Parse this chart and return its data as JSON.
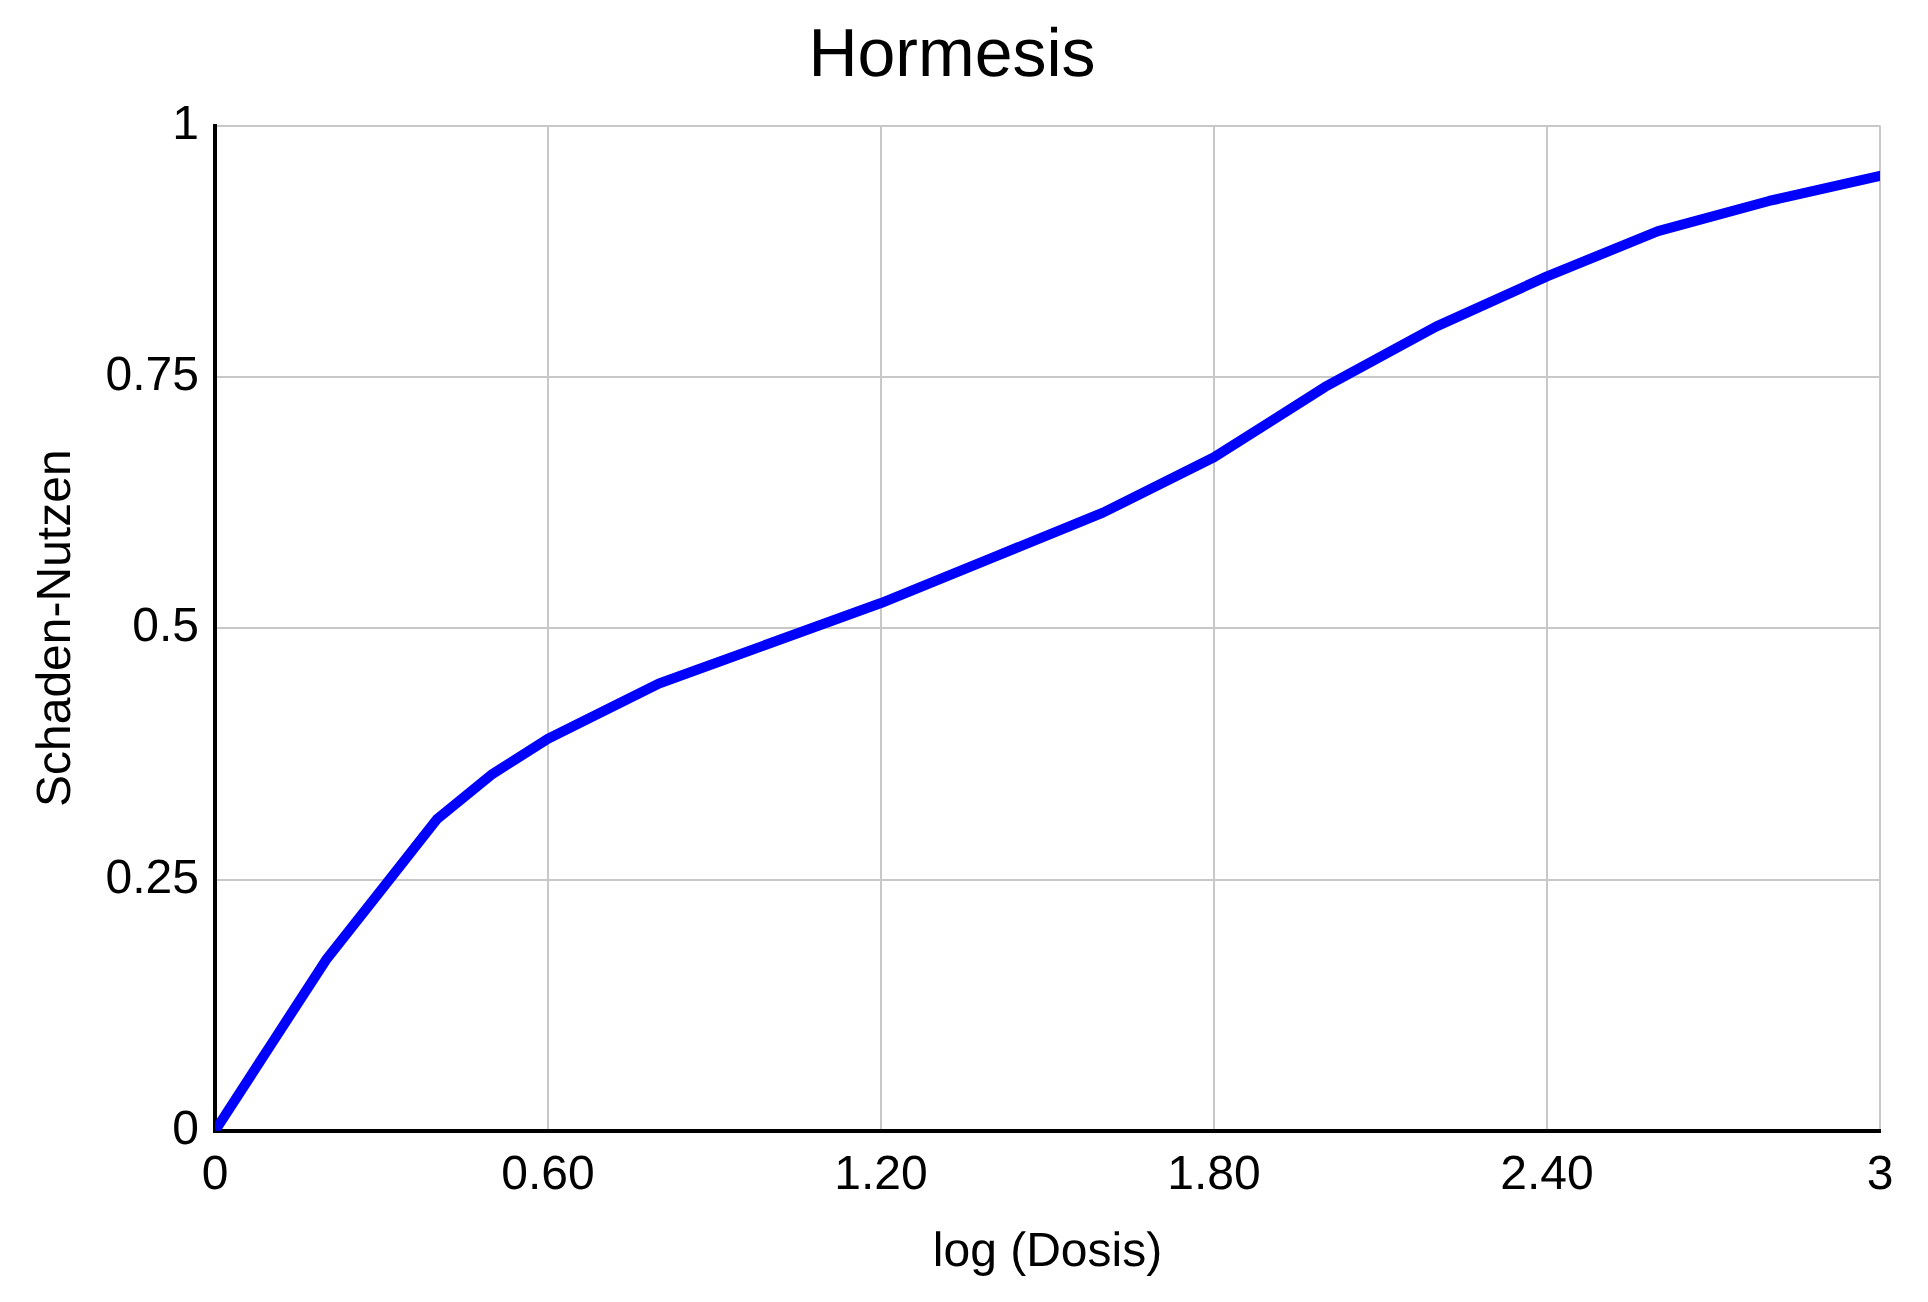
{
  "chart_data": {
    "type": "line",
    "title": "Hormesis",
    "xlabel": "log (Dosis)",
    "ylabel": "Schaden-Nutzen",
    "x": [
      0,
      0.1,
      0.2,
      0.3,
      0.4,
      0.5,
      0.6,
      0.8,
      1.0,
      1.2,
      1.4,
      1.6,
      1.8,
      2.0,
      2.2,
      2.4,
      2.6,
      2.8,
      3.0
    ],
    "series": [
      {
        "color": "#0000ff",
        "values": [
          0,
          0.085,
          0.17,
          0.24,
          0.31,
          0.355,
          0.39,
          0.445,
          0.485,
          0.525,
          0.57,
          0.615,
          0.67,
          0.74,
          0.8,
          0.85,
          0.895,
          0.925,
          0.95
        ]
      }
    ],
    "xlim": [
      0,
      3
    ],
    "xticks": [
      0,
      {
        "value": 0.6,
        "label": "0.60"
      },
      {
        "value": 1.2,
        "label": "1.20"
      },
      {
        "value": 1.8,
        "label": "1.80"
      },
      {
        "value": 2.4,
        "label": "2.40"
      },
      3
    ],
    "ylim": [
      0,
      1
    ],
    "yticks": [
      0,
      0.25,
      0.5,
      0.75,
      1
    ],
    "grid": true,
    "legend": false,
    "marker": "none",
    "line_style": "solid"
  }
}
